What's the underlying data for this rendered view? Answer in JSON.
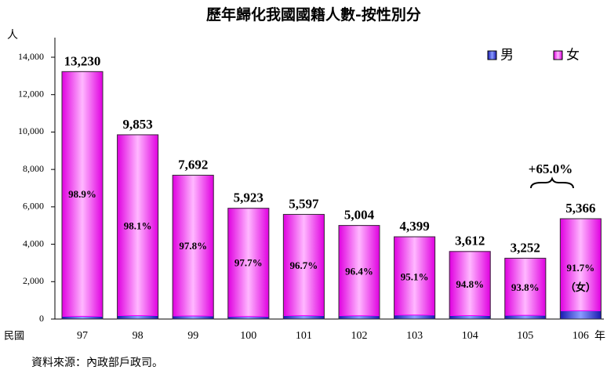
{
  "chart_data": {
    "type": "stacked-bar",
    "title": "歷年歸化我國國籍人數-按性別分",
    "y_label": "人",
    "x_prefix": "民國",
    "x_suffix": "年",
    "source": "資料來源：內政部戶政司。",
    "categories": [
      "97",
      "98",
      "99",
      "100",
      "101",
      "102",
      "103",
      "104",
      "105",
      "106"
    ],
    "series": [
      {
        "name": "男",
        "color": "#2a2ad0",
        "values": [
          146,
          187,
          169,
          136,
          185,
          180,
          216,
          188,
          202,
          445
        ]
      },
      {
        "name": "女",
        "color": "#ff00ff",
        "values": [
          13084,
          9666,
          7523,
          5787,
          5412,
          4824,
          4183,
          3424,
          3050,
          4921
        ]
      }
    ],
    "totals": {
      "values": [
        13230,
        9853,
        7692,
        5923,
        5597,
        5004,
        4399,
        3612,
        3252,
        5366
      ],
      "value_labels": [
        "13,230",
        "9,853",
        "7,692",
        "5,923",
        "5,597",
        "5,004",
        "4,399",
        "3,612",
        "3,252",
        "5,366"
      ]
    },
    "female_share": {
      "values": [
        98.9,
        98.1,
        97.8,
        97.7,
        96.7,
        96.4,
        95.1,
        94.8,
        93.8,
        91.7
      ],
      "value_labels": [
        "98.9%",
        "98.1%",
        "97.8%",
        "97.7%",
        "96.7%",
        "96.4%",
        "95.1%",
        "94.8%",
        "93.8%",
        "91.7%"
      ]
    },
    "last_share_note": "（女）",
    "annotation": "+65.0%",
    "ylim": [
      0,
      14000
    ],
    "yticks": [
      0,
      {
        "value": 2000,
        "label": "2,000"
      },
      {
        "value": 4000,
        "label": "4,000"
      },
      {
        "value": 6000,
        "label": "6,000"
      },
      {
        "value": 8000,
        "label": "8,000"
      },
      {
        "value": 10000,
        "label": "10,000"
      },
      {
        "value": 12000,
        "label": "12,000"
      },
      {
        "value": 14000,
        "label": "14,000"
      }
    ],
    "legend": "top-right"
  }
}
